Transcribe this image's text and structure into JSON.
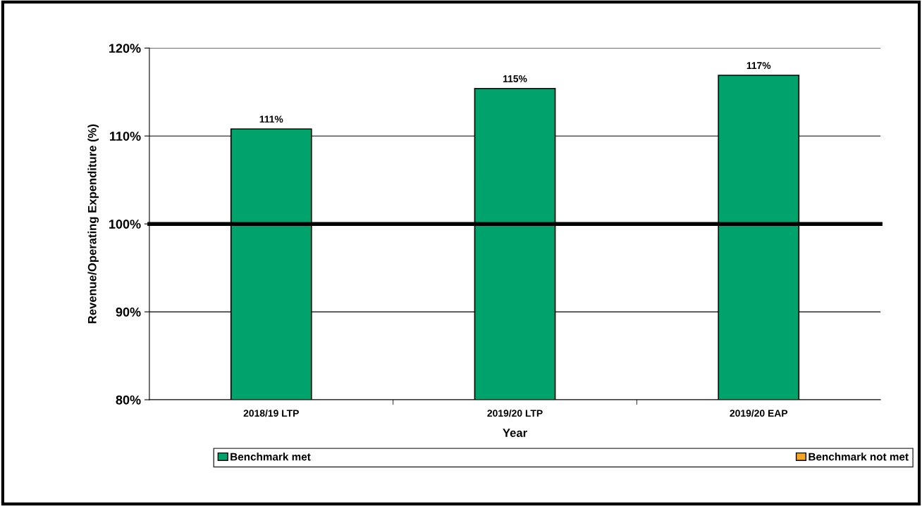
{
  "chart_data": {
    "type": "bar",
    "xlabel": "Year",
    "ylabel": "Revenue/Operating Expenditure (%)",
    "categories": [
      "2018/19 LTP",
      "2019/20 LTP",
      "2019/20 EAP"
    ],
    "stacked": true,
    "series": [
      {
        "name": "Benchmark met",
        "color": "#00a36c",
        "values": [
          110.8,
          115.4,
          116.9
        ],
        "value_labels": [
          "111%",
          "115%",
          "117%"
        ]
      },
      {
        "name": "Benchmark not met",
        "color": "#f5a623",
        "values": [
          null,
          null,
          null
        ]
      }
    ],
    "ylim": [
      80,
      120
    ],
    "yticks": [
      {
        "value": 80,
        "label": "80%"
      },
      {
        "value": 90,
        "label": "90%"
      },
      {
        "value": 100,
        "label": "100%"
      },
      {
        "value": 110,
        "label": "110%"
      },
      {
        "value": 120,
        "label": "120%"
      }
    ],
    "grid": "y",
    "legend": "bottom",
    "ref_lines": [
      {
        "axis": "y",
        "value": 100,
        "label": null,
        "color": "#000000"
      }
    ]
  }
}
